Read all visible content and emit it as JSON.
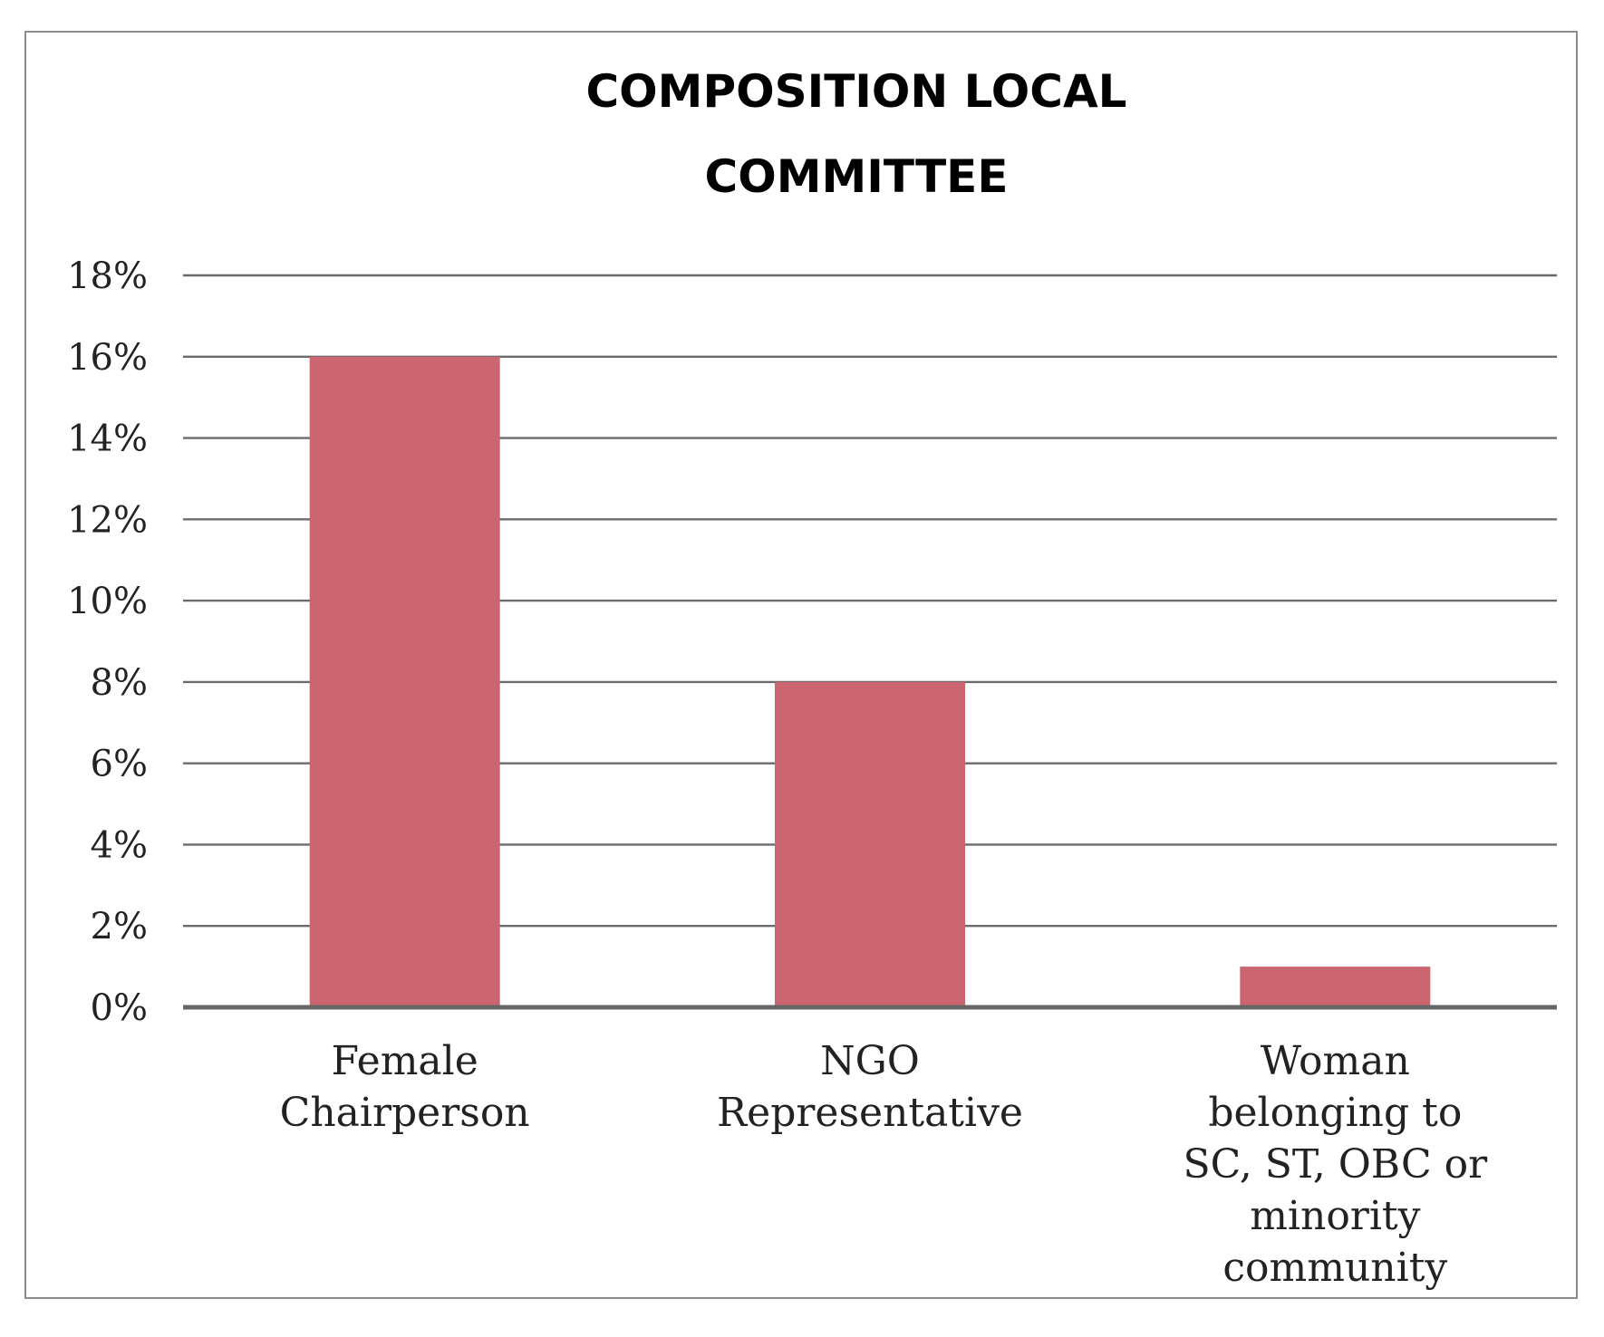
{
  "chart_data": {
    "type": "bar",
    "title_lines": [
      "COMPOSITION LOCAL",
      "COMMITTEE"
    ],
    "categories": [
      [
        "Female",
        "Chairperson"
      ],
      [
        "NGO",
        "Representative"
      ],
      [
        "Woman",
        "belonging to",
        "SC, ST, OBC or",
        "minority",
        "community"
      ]
    ],
    "values": [
      16,
      8,
      1
    ],
    "ylim": [
      0,
      18
    ],
    "yticks": [
      0,
      2,
      4,
      6,
      8,
      10,
      12,
      14,
      16,
      18
    ],
    "ytick_labels": [
      "0%",
      "2%",
      "4%",
      "6%",
      "8%",
      "10%",
      "12%",
      "14%",
      "16%",
      "18%"
    ],
    "bar_color": "#cb6670",
    "grid": true,
    "legend": "none",
    "xlabel": "",
    "ylabel": ""
  }
}
